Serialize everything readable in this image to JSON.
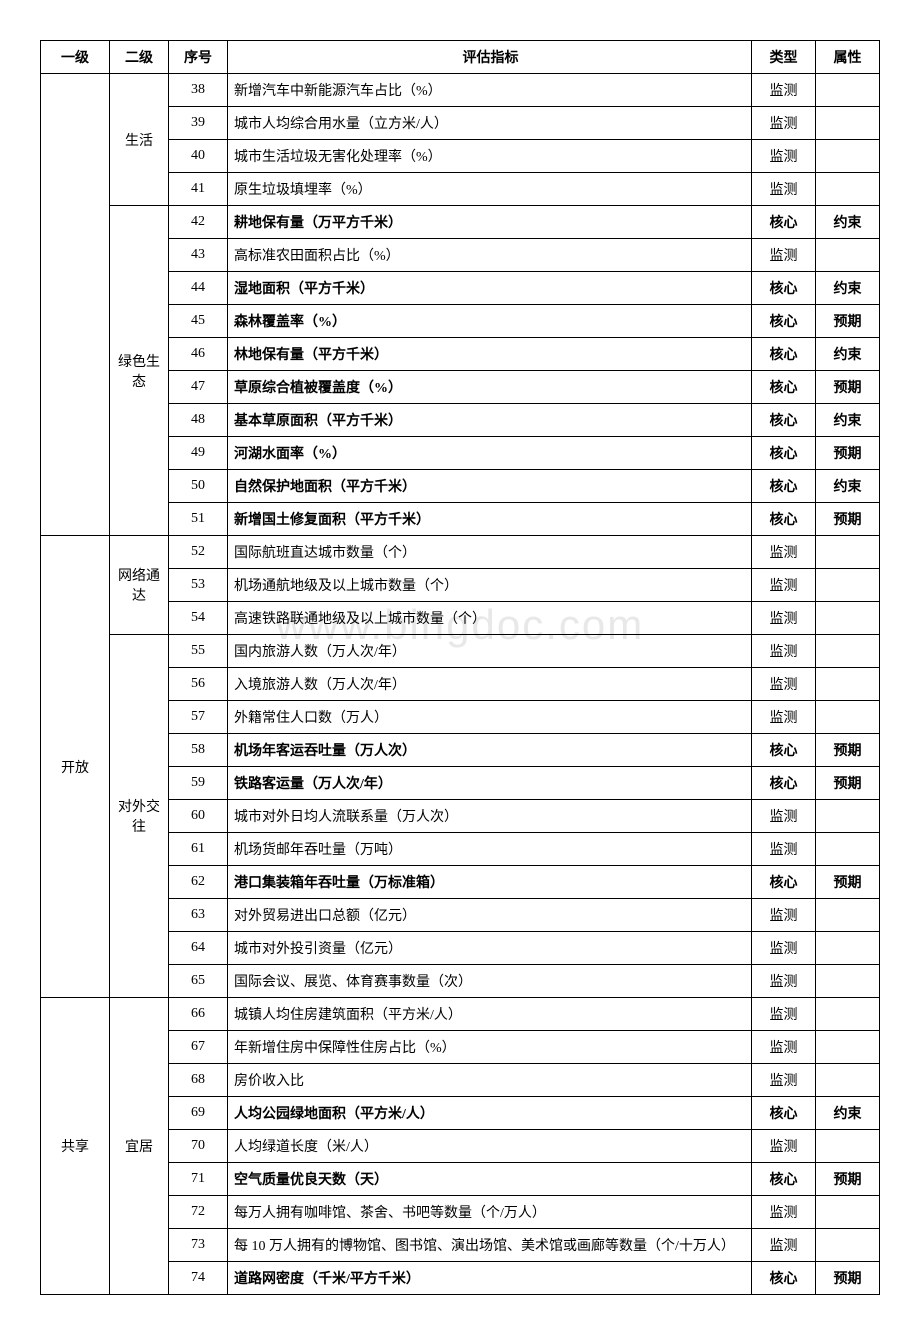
{
  "watermark": "www.bingdoc.com",
  "headers": {
    "l1": "一级",
    "l2": "二级",
    "seq": "序号",
    "indicator": "评估指标",
    "type": "类型",
    "attr": "属性"
  },
  "groups": [
    {
      "l1": "",
      "subgroups": [
        {
          "l2": "生活",
          "rows": [
            {
              "seq": 38,
              "indicator": "新增汽车中新能源汽车占比（%）",
              "type": "监测",
              "attr": "",
              "bold": false
            },
            {
              "seq": 39,
              "indicator": "城市人均综合用水量（立方米/人）",
              "type": "监测",
              "attr": "",
              "bold": false
            },
            {
              "seq": 40,
              "indicator": "城市生活垃圾无害化处理率（%）",
              "type": "监测",
              "attr": "",
              "bold": false
            },
            {
              "seq": 41,
              "indicator": "原生垃圾填埋率（%）",
              "type": "监测",
              "attr": "",
              "bold": false
            }
          ]
        },
        {
          "l2": "绿色生态",
          "rows": [
            {
              "seq": 42,
              "indicator": "耕地保有量（万平方千米）",
              "type": "核心",
              "attr": "约束",
              "bold": true
            },
            {
              "seq": 43,
              "indicator": "高标准农田面积占比（%）",
              "type": "监测",
              "attr": "",
              "bold": false
            },
            {
              "seq": 44,
              "indicator": "湿地面积（平方千米）",
              "type": "核心",
              "attr": "约束",
              "bold": true
            },
            {
              "seq": 45,
              "indicator": "森林覆盖率（%）",
              "type": "核心",
              "attr": "预期",
              "bold": true
            },
            {
              "seq": 46,
              "indicator": "林地保有量（平方千米）",
              "type": "核心",
              "attr": "约束",
              "bold": true
            },
            {
              "seq": 47,
              "indicator": "草原综合植被覆盖度（%）",
              "type": "核心",
              "attr": "预期",
              "bold": true
            },
            {
              "seq": 48,
              "indicator": "基本草原面积（平方千米）",
              "type": "核心",
              "attr": "约束",
              "bold": true
            },
            {
              "seq": 49,
              "indicator": "河湖水面率（%）",
              "type": "核心",
              "attr": "预期",
              "bold": true
            },
            {
              "seq": 50,
              "indicator": "自然保护地面积（平方千米）",
              "type": "核心",
              "attr": "约束",
              "bold": true
            },
            {
              "seq": 51,
              "indicator": "新增国土修复面积（平方千米）",
              "type": "核心",
              "attr": "预期",
              "bold": true
            }
          ]
        }
      ]
    },
    {
      "l1": "开放",
      "subgroups": [
        {
          "l2": "网络通达",
          "rows": [
            {
              "seq": 52,
              "indicator": "国际航班直达城市数量（个）",
              "type": "监测",
              "attr": "",
              "bold": false
            },
            {
              "seq": 53,
              "indicator": "机场通航地级及以上城市数量（个）",
              "type": "监测",
              "attr": "",
              "bold": false
            },
            {
              "seq": 54,
              "indicator": "高速铁路联通地级及以上城市数量（个）",
              "type": "监测",
              "attr": "",
              "bold": false
            }
          ]
        },
        {
          "l2": "对外交往",
          "rows": [
            {
              "seq": 55,
              "indicator": "国内旅游人数（万人次/年）",
              "type": "监测",
              "attr": "",
              "bold": false
            },
            {
              "seq": 56,
              "indicator": "入境旅游人数（万人次/年）",
              "type": "监测",
              "attr": "",
              "bold": false
            },
            {
              "seq": 57,
              "indicator": "外籍常住人口数（万人）",
              "type": "监测",
              "attr": "",
              "bold": false
            },
            {
              "seq": 58,
              "indicator": "机场年客运吞吐量（万人次）",
              "type": "核心",
              "attr": "预期",
              "bold": true
            },
            {
              "seq": 59,
              "indicator": "铁路客运量（万人次/年）",
              "type": "核心",
              "attr": "预期",
              "bold": true
            },
            {
              "seq": 60,
              "indicator": "城市对外日均人流联系量（万人次）",
              "type": "监测",
              "attr": "",
              "bold": false
            },
            {
              "seq": 61,
              "indicator": "机场货邮年吞吐量（万吨）",
              "type": "监测",
              "attr": "",
              "bold": false
            },
            {
              "seq": 62,
              "indicator": "港口集装箱年吞吐量（万标准箱）",
              "type": "核心",
              "attr": "预期",
              "bold": true
            },
            {
              "seq": 63,
              "indicator": "对外贸易进出口总额（亿元）",
              "type": "监测",
              "attr": "",
              "bold": false
            },
            {
              "seq": 64,
              "indicator": "城市对外投引资量（亿元）",
              "type": "监测",
              "attr": "",
              "bold": false
            },
            {
              "seq": 65,
              "indicator": "国际会议、展览、体育赛事数量（次）",
              "type": "监测",
              "attr": "",
              "bold": false
            }
          ]
        }
      ]
    },
    {
      "l1": "共享",
      "subgroups": [
        {
          "l2": "宜居",
          "rows": [
            {
              "seq": 66,
              "indicator": "城镇人均住房建筑面积（平方米/人）",
              "type": "监测",
              "attr": "",
              "bold": false
            },
            {
              "seq": 67,
              "indicator": "年新增住房中保障性住房占比（%）",
              "type": "监测",
              "attr": "",
              "bold": false
            },
            {
              "seq": 68,
              "indicator": "房价收入比",
              "type": "监测",
              "attr": "",
              "bold": false
            },
            {
              "seq": 69,
              "indicator": "人均公园绿地面积（平方米/人）",
              "type": "核心",
              "attr": "约束",
              "bold": true
            },
            {
              "seq": 70,
              "indicator": "人均绿道长度（米/人）",
              "type": "监测",
              "attr": "",
              "bold": false
            },
            {
              "seq": 71,
              "indicator": "空气质量优良天数（天）",
              "type": "核心",
              "attr": "预期",
              "bold": true
            },
            {
              "seq": 72,
              "indicator": "每万人拥有咖啡馆、茶舍、书吧等数量（个/万人）",
              "type": "监测",
              "attr": "",
              "bold": false
            },
            {
              "seq": 73,
              "indicator": "每 10 万人拥有的博物馆、图书馆、演出场馆、美术馆或画廊等数量（个/十万人）",
              "type": "监测",
              "attr": "",
              "bold": false
            },
            {
              "seq": 74,
              "indicator": "道路网密度（千米/平方千米）",
              "type": "核心",
              "attr": "预期",
              "bold": true
            }
          ]
        }
      ]
    }
  ]
}
